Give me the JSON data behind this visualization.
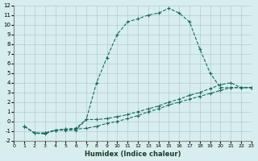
{
  "xlabel": "Humidex (Indice chaleur)",
  "xlim": [
    0,
    23
  ],
  "ylim": [
    -2,
    12
  ],
  "xticks": [
    0,
    1,
    2,
    3,
    4,
    5,
    6,
    7,
    8,
    9,
    10,
    11,
    12,
    13,
    14,
    15,
    16,
    17,
    18,
    19,
    20,
    21,
    22,
    23
  ],
  "yticks": [
    -2,
    -1,
    0,
    1,
    2,
    3,
    4,
    5,
    6,
    7,
    8,
    9,
    10,
    11,
    12
  ],
  "bg_color": "#d8eeee",
  "grid_color": "#b0cccc",
  "line_color": "#1a6b5a",
  "series": [
    {
      "x": [
        1,
        2,
        3,
        4,
        5,
        6,
        7,
        8,
        9,
        10,
        11,
        12,
        13,
        14,
        15,
        16,
        17,
        18,
        19,
        20,
        21,
        22,
        23
      ],
      "y": [
        -0.5,
        -1.2,
        -1.3,
        -0.9,
        -0.9,
        -0.9,
        0.2,
        4.0,
        6.6,
        9.0,
        10.3,
        10.6,
        11.0,
        11.2,
        11.7,
        11.2,
        10.3,
        7.5,
        5.0,
        3.5,
        3.5,
        3.5,
        3.5
      ]
    },
    {
      "x": [
        1,
        2,
        3,
        4,
        5,
        6,
        7,
        8,
        9,
        10,
        11,
        12,
        13,
        14,
        15,
        16,
        17,
        18,
        19,
        20,
        21,
        22,
        23
      ],
      "y": [
        -0.5,
        -1.2,
        -1.2,
        -0.9,
        -0.8,
        -0.7,
        0.2,
        0.2,
        0.3,
        0.5,
        0.7,
        1.0,
        1.3,
        1.6,
        2.0,
        2.3,
        2.7,
        3.0,
        3.4,
        3.8,
        4.0,
        3.5,
        3.5
      ]
    },
    {
      "x": [
        1,
        2,
        3,
        4,
        5,
        6,
        7,
        8,
        9,
        10,
        11,
        12,
        13,
        14,
        15,
        16,
        17,
        18,
        19,
        20,
        21,
        22,
        23
      ],
      "y": [
        -0.5,
        -1.2,
        -1.2,
        -0.9,
        -0.8,
        -0.8,
        -0.7,
        -0.5,
        -0.2,
        0.0,
        0.3,
        0.6,
        1.0,
        1.3,
        1.7,
        2.0,
        2.3,
        2.6,
        2.9,
        3.2,
        3.5,
        3.5,
        3.5
      ]
    }
  ]
}
